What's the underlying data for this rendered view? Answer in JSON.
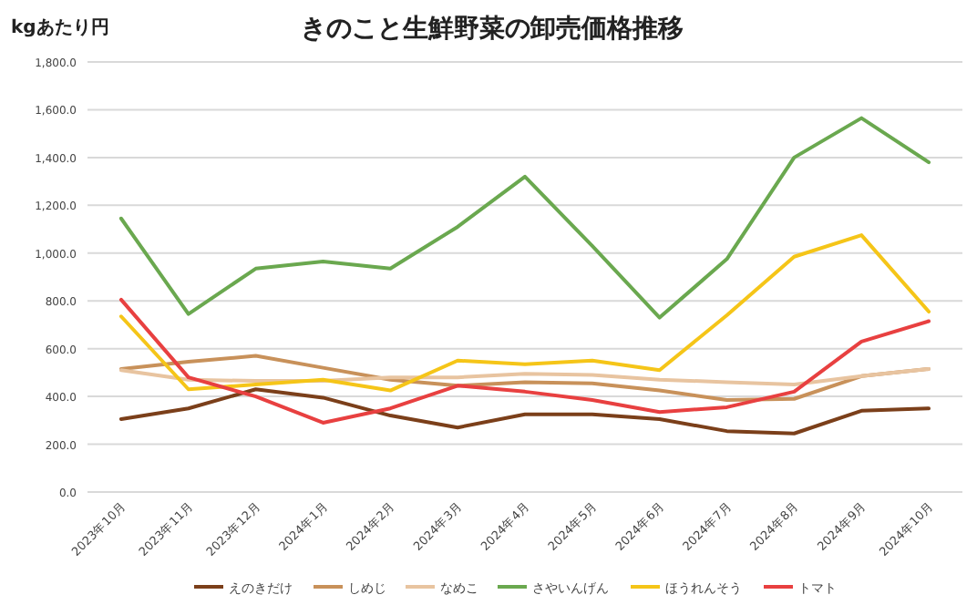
{
  "chart_data": {
    "type": "line",
    "title": "きのこと生鮮野菜の卸売価格推移",
    "ylabel": "kgあたり円",
    "categories": [
      "2023年10月",
      "2023年11月",
      "2023年12月",
      "2024年1月",
      "2024年2月",
      "2024年3月",
      "2024年4月",
      "2024年5月",
      "2024年6月",
      "2024年7月",
      "2024年8月",
      "2024年9月",
      "2024年10月"
    ],
    "series": [
      {
        "name": "えのきだけ",
        "color": "#7b3f1a",
        "values": [
          305,
          350,
          430,
          395,
          320,
          270,
          325,
          325,
          305,
          255,
          245,
          340,
          350
        ]
      },
      {
        "name": "しめじ",
        "color": "#c8915a",
        "values": [
          515,
          545,
          570,
          520,
          470,
          445,
          460,
          455,
          425,
          385,
          390,
          485,
          515
        ]
      },
      {
        "name": "なめこ",
        "color": "#e8c4a0",
        "values": [
          510,
          470,
          465,
          465,
          480,
          480,
          495,
          490,
          470,
          460,
          450,
          485,
          515
        ]
      },
      {
        "name": "さやいんげん",
        "color": "#6aa84f",
        "values": [
          1145,
          745,
          935,
          965,
          935,
          1110,
          1320,
          1030,
          730,
          975,
          1400,
          1565,
          1380
        ]
      },
      {
        "name": "ほうれんそう",
        "color": "#f5c518",
        "values": [
          735,
          430,
          450,
          470,
          425,
          550,
          535,
          550,
          510,
          740,
          985,
          1075,
          755
        ]
      },
      {
        "name": "トマト",
        "color": "#e84040",
        "values": [
          805,
          480,
          400,
          290,
          350,
          445,
          420,
          385,
          335,
          355,
          420,
          630,
          715
        ]
      }
    ],
    "ylim": [
      0,
      1800
    ],
    "yticks": [
      {
        "value": 0,
        "label": "0.0"
      },
      {
        "value": 200,
        "label": "200.0"
      },
      {
        "value": 400,
        "label": "400.0"
      },
      {
        "value": 600,
        "label": "600.0"
      },
      {
        "value": 800,
        "label": "800.0"
      },
      {
        "value": 1000,
        "label": "1,000.0"
      },
      {
        "value": 1200,
        "label": "1,200.0"
      },
      {
        "value": 1400,
        "label": "1,400.0"
      },
      {
        "value": 1600,
        "label": "1,600.0"
      },
      {
        "value": 1800,
        "label": "1,800.0"
      }
    ],
    "grid": "y",
    "legend": "bottom",
    "marker": "none",
    "line_style": "solid"
  }
}
